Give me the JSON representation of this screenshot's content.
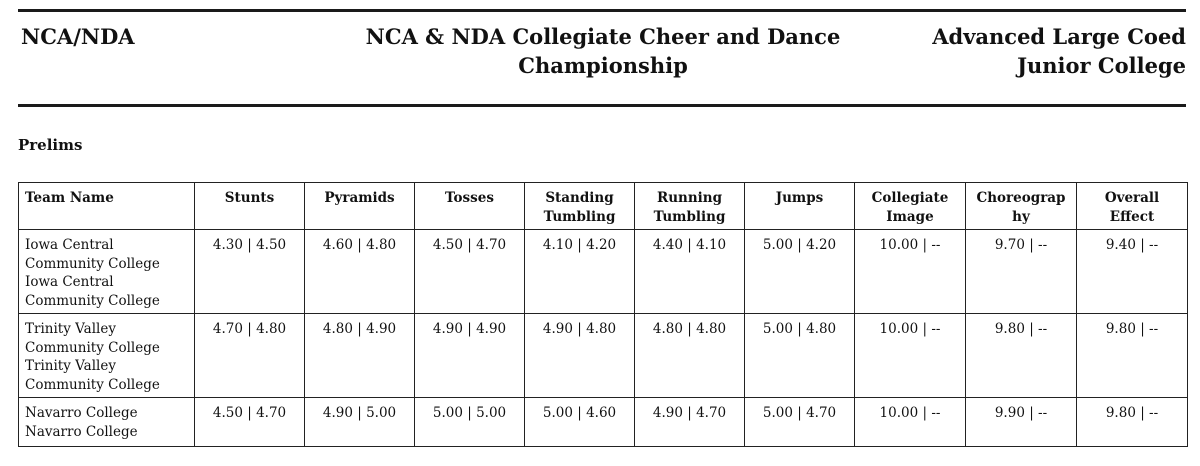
{
  "header": {
    "org": "NCA/NDA",
    "title": "NCA & NDA Collegiate Cheer and Dance Championship",
    "division": "Advanced Large Coed Junior College"
  },
  "section_title": "Prelims",
  "table": {
    "columns": [
      "Team Name",
      "Stunts",
      "Pyramids",
      "Tosses",
      "Standing Tumbling",
      "Running Tumbling",
      "Jumps",
      "Collegiate Image",
      "Choreography",
      "Overall Effect"
    ],
    "rows": [
      {
        "team": "Iowa Central Community College Iowa Central Community College",
        "scores": [
          "4.30 | 4.50",
          "4.60 | 4.80",
          "4.50 | 4.70",
          "4.10 | 4.20",
          "4.40 | 4.10",
          "5.00 | 4.20",
          "10.00 | --",
          "9.70 | --",
          "9.40 | --"
        ]
      },
      {
        "team": "Trinity Valley Community College Trinity Valley Community College",
        "scores": [
          "4.70 | 4.80",
          "4.80 | 4.90",
          "4.90 | 4.90",
          "4.90 | 4.80",
          "4.80 | 4.80",
          "5.00 | 4.80",
          "10.00 | --",
          "9.80 | --",
          "9.80 | --"
        ]
      },
      {
        "team": "Navarro College Navarro College",
        "scores": [
          "4.50 | 4.70",
          "4.90 | 5.00",
          "5.00 | 5.00",
          "5.00 | 4.60",
          "4.90 | 4.70",
          "5.00 | 4.70",
          "10.00 | --",
          "9.90 | --",
          "9.80 | --"
        ]
      }
    ]
  }
}
